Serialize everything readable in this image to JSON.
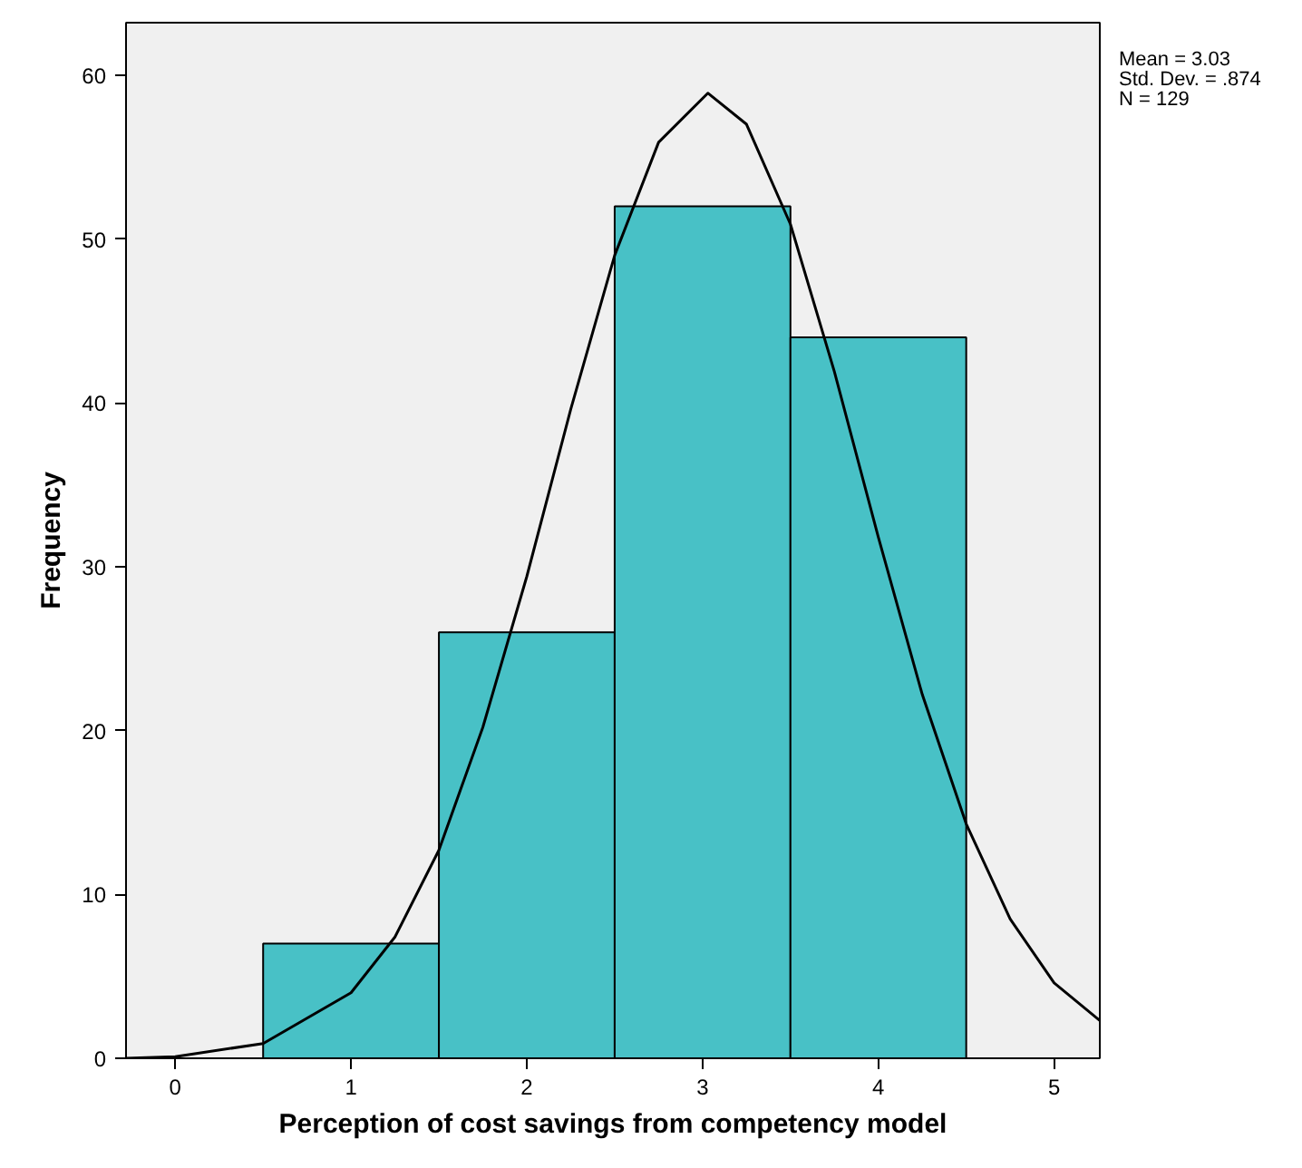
{
  "chart_data": {
    "type": "histogram",
    "xlabel": "Perception of cost savings from competency model",
    "ylabel": "Frequency",
    "bins": [
      0.5,
      1.5,
      2.5,
      3.5,
      4.5
    ],
    "values": [
      7,
      26,
      52,
      44
    ],
    "color": "#48c1c6",
    "series": [
      {
        "type": "line",
        "color": "#000000",
        "x": [
          -0.28,
          0,
          0.5,
          1,
          1.25,
          1.5,
          1.75,
          2,
          2.25,
          2.5,
          2.75,
          3.03,
          3.25,
          3.5,
          3.75,
          4,
          4.25,
          4.5,
          4.75,
          5,
          5.26
        ],
        "values": [
          0,
          0.1,
          0.9,
          4.0,
          7.4,
          12.7,
          20.2,
          29.4,
          39.6,
          49.0,
          55.9,
          58.9,
          57.0,
          50.9,
          41.9,
          31.8,
          22.2,
          14.3,
          8.5,
          4.6,
          2.3
        ]
      }
    ],
    "xlim": [
      -0.28,
      5.26
    ],
    "ylim": [
      0,
      63.2
    ],
    "xticks": [
      0,
      1,
      2,
      3,
      4,
      5
    ],
    "yticks": [
      0,
      10,
      20,
      30,
      40,
      50,
      60
    ],
    "grid": false,
    "annotations": [
      "Mean = 3.03\nStd. Dev. = .874\nN = 129"
    ]
  }
}
